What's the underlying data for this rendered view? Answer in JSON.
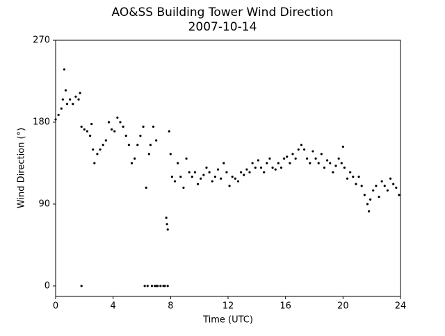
{
  "chart_data": {
    "type": "scatter",
    "title": "AO&SS Building Tower Wind Direction",
    "subtitle": "2007-10-14",
    "x_label": "Time (UTC)",
    "y_label": "Wind Direction (°)",
    "color": "#000000",
    "xlim": [
      0,
      24
    ],
    "xticks": [
      0,
      4,
      8,
      12,
      16,
      20,
      24
    ],
    "ylim": [
      -11.5,
      270
    ],
    "yticks": [
      0,
      90,
      180,
      270
    ],
    "x": [
      0.0,
      0.2,
      0.4,
      0.5,
      0.6,
      0.7,
      0.8,
      1.0,
      1.2,
      1.4,
      1.6,
      1.7,
      1.8,
      1.8,
      2.0,
      2.2,
      2.4,
      2.5,
      2.6,
      2.7,
      2.9,
      3.1,
      3.3,
      3.5,
      3.7,
      3.9,
      4.1,
      4.3,
      4.5,
      4.7,
      4.9,
      5.1,
      5.3,
      5.5,
      5.7,
      5.9,
      6.1,
      6.2,
      6.3,
      6.4,
      6.5,
      6.6,
      6.7,
      6.8,
      6.9,
      7.0,
      7.0,
      7.1,
      7.3,
      7.5,
      7.6,
      7.7,
      7.75,
      7.8,
      7.8,
      7.9,
      8.0,
      8.1,
      8.3,
      8.5,
      8.7,
      8.9,
      9.1,
      9.3,
      9.5,
      9.7,
      9.9,
      10.1,
      10.3,
      10.5,
      10.7,
      10.9,
      11.1,
      11.3,
      11.5,
      11.7,
      11.9,
      12.1,
      12.3,
      12.5,
      12.7,
      12.9,
      13.1,
      13.3,
      13.5,
      13.7,
      13.9,
      14.1,
      14.3,
      14.5,
      14.7,
      14.9,
      15.1,
      15.3,
      15.5,
      15.7,
      15.9,
      16.1,
      16.3,
      16.5,
      16.7,
      16.9,
      17.1,
      17.3,
      17.5,
      17.7,
      17.9,
      18.1,
      18.3,
      18.5,
      18.7,
      18.9,
      19.1,
      19.3,
      19.5,
      19.7,
      19.9,
      20.0,
      20.1,
      20.3,
      20.5,
      20.7,
      20.9,
      21.1,
      21.3,
      21.5,
      21.7,
      21.8,
      21.9,
      22.1,
      22.3,
      22.5,
      22.7,
      22.9,
      23.1,
      23.3,
      23.5,
      23.7,
      23.9
    ],
    "values": [
      183,
      188,
      195,
      205,
      238,
      215,
      200,
      205,
      200,
      208,
      205,
      212,
      175,
      0,
      172,
      170,
      165,
      178,
      150,
      135,
      145,
      150,
      155,
      160,
      180,
      172,
      170,
      185,
      180,
      175,
      165,
      155,
      135,
      140,
      155,
      165,
      175,
      0,
      108,
      0,
      145,
      155,
      0,
      175,
      0,
      160,
      0,
      0,
      0,
      0,
      0,
      75,
      68,
      62,
      0,
      170,
      145,
      120,
      115,
      135,
      120,
      108,
      140,
      125,
      120,
      125,
      112,
      118,
      122,
      130,
      125,
      115,
      120,
      128,
      118,
      135,
      125,
      110,
      120,
      118,
      115,
      125,
      122,
      128,
      125,
      135,
      130,
      138,
      130,
      125,
      135,
      140,
      130,
      128,
      135,
      130,
      140,
      142,
      135,
      145,
      140,
      150,
      155,
      150,
      140,
      135,
      148,
      140,
      135,
      145,
      130,
      138,
      135,
      125,
      132,
      140,
      135,
      153,
      130,
      118,
      125,
      120,
      112,
      120,
      110,
      100,
      90,
      82,
      95,
      105,
      110,
      98,
      115,
      110,
      105,
      118,
      112,
      108,
      100
    ]
  }
}
